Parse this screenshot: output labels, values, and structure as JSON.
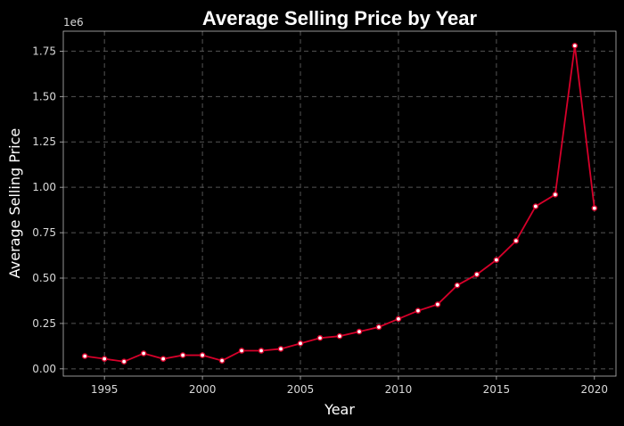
{
  "chart_data": {
    "type": "line",
    "title": "Average Selling Price by Year",
    "xlabel": "Year",
    "ylabel": "Average Selling Price",
    "y_offset_label": "1e6",
    "xlim": [
      1992.9,
      2021.1
    ],
    "ylim": [
      -0.04,
      1.86
    ],
    "x_ticks": [
      1995,
      2000,
      2005,
      2010,
      2015,
      2020
    ],
    "x_tick_labels": [
      "1995",
      "2000",
      "2005",
      "2010",
      "2015",
      "2020"
    ],
    "y_ticks": [
      0,
      0.25,
      0.5,
      0.75,
      1.0,
      1.25,
      1.5,
      1.75
    ],
    "y_tick_labels": [
      "0.00",
      "0.25",
      "0.50",
      "0.75",
      "1.00",
      "1.25",
      "1.50",
      "1.75"
    ],
    "grid": true,
    "line_color": "#d6002a",
    "marker_fill": "#ffffff",
    "series": [
      {
        "x": [
          1994,
          1995,
          1996,
          1997,
          1998,
          1999,
          2000,
          2001,
          2002,
          2003,
          2004,
          2005,
          2006,
          2007,
          2008,
          2009,
          2010,
          2011,
          2012,
          2013,
          2014,
          2015,
          2016,
          2017,
          2018,
          2019,
          2020
        ],
        "values": [
          0.07,
          0.055,
          0.04,
          0.085,
          0.055,
          0.075,
          0.075,
          0.045,
          0.1,
          0.1,
          0.11,
          0.14,
          0.17,
          0.18,
          0.205,
          0.23,
          0.275,
          0.32,
          0.355,
          0.46,
          0.52,
          0.6,
          0.705,
          0.895,
          0.96,
          1.78,
          0.885
        ]
      }
    ]
  }
}
